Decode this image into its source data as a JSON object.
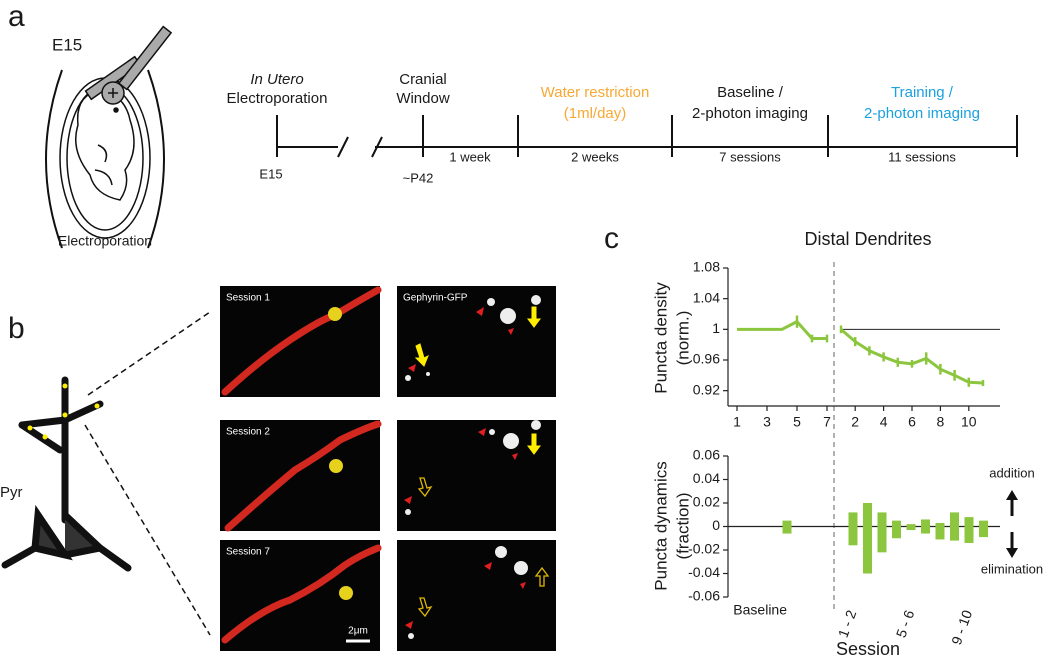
{
  "panel_labels": [
    "a",
    "b",
    "c"
  ],
  "panel_a": {
    "stage": "E15",
    "caption": "Electroporation",
    "timeline": {
      "headers": [
        [
          "In Utero",
          "Electroporation"
        ],
        [
          "Cranial",
          "Window"
        ],
        [
          "Water restriction",
          "(1ml/day)"
        ],
        [
          "Baseline /",
          "2-photon imaging"
        ],
        [
          "Training /",
          "2-photon imaging"
        ]
      ],
      "tick_labels": [
        "E15",
        "~P42"
      ],
      "durations": [
        "1 week",
        "2 weeks",
        "7 sessions",
        "11 sessions"
      ]
    }
  },
  "panel_b": {
    "neuron_label": "Pyr",
    "image_labels": [
      "Session 1",
      "Gephyrin-GFP",
      "Session 2",
      "Session 7"
    ],
    "scale_bar": "2μm"
  },
  "chart_data": [
    {
      "type": "line",
      "title": "Distal Dendrites",
      "ylabel": [
        "Puncta density",
        "(norm.)"
      ],
      "color": "#8cc63f",
      "ylim": [
        0.9,
        1.08
      ],
      "yticks": [
        0.92,
        0.96,
        1,
        1.04,
        1.08
      ],
      "hline": 1,
      "segments": [
        {
          "x": [
            1,
            2,
            3,
            4,
            5,
            6,
            7
          ],
          "values": [
            1,
            1,
            1,
            1,
            1.01,
            0.988,
            0.988
          ],
          "errors": [
            null,
            null,
            null,
            null,
            0.008,
            0.005,
            0.005
          ],
          "xticks": [
            1,
            3,
            5,
            7
          ]
        },
        {
          "x": [
            1,
            2,
            3,
            4,
            5,
            6,
            7,
            8,
            9,
            10,
            11
          ],
          "values": [
            1,
            0.984,
            0.972,
            0.964,
            0.957,
            0.955,
            0.962,
            0.948,
            0.94,
            0.931,
            0.93
          ],
          "errors": [
            0.005,
            0.006,
            0.006,
            0.006,
            0.006,
            0.005,
            0.008,
            0.007,
            0.007,
            0.006,
            0.004
          ],
          "xticks": [
            2,
            4,
            6,
            8,
            10
          ]
        }
      ]
    },
    {
      "type": "bar",
      "ylabel": [
        "Puncta dynamics",
        "(fraction)"
      ],
      "xlabel": "Session",
      "color": "#8cc63f",
      "ylim": [
        -0.06,
        0.06
      ],
      "yticks": [
        -0.06,
        -0.04,
        -0.02,
        0,
        0.02,
        0.04,
        0.06
      ],
      "categories": [
        "Baseline",
        "1 - 2",
        null,
        null,
        null,
        "5 - 6",
        null,
        null,
        null,
        "9 - 10",
        null
      ],
      "series": [
        {
          "name": "addition",
          "values": [
            0.005,
            0.012,
            0.02,
            0.012,
            0.005,
            0.002,
            0.006,
            0.003,
            0.012,
            0.008,
            0.005
          ]
        },
        {
          "name": "elimination",
          "values": [
            -0.006,
            -0.016,
            -0.04,
            -0.022,
            -0.01,
            -0.003,
            -0.006,
            -0.011,
            -0.012,
            -0.014,
            -0.009
          ]
        }
      ]
    }
  ]
}
